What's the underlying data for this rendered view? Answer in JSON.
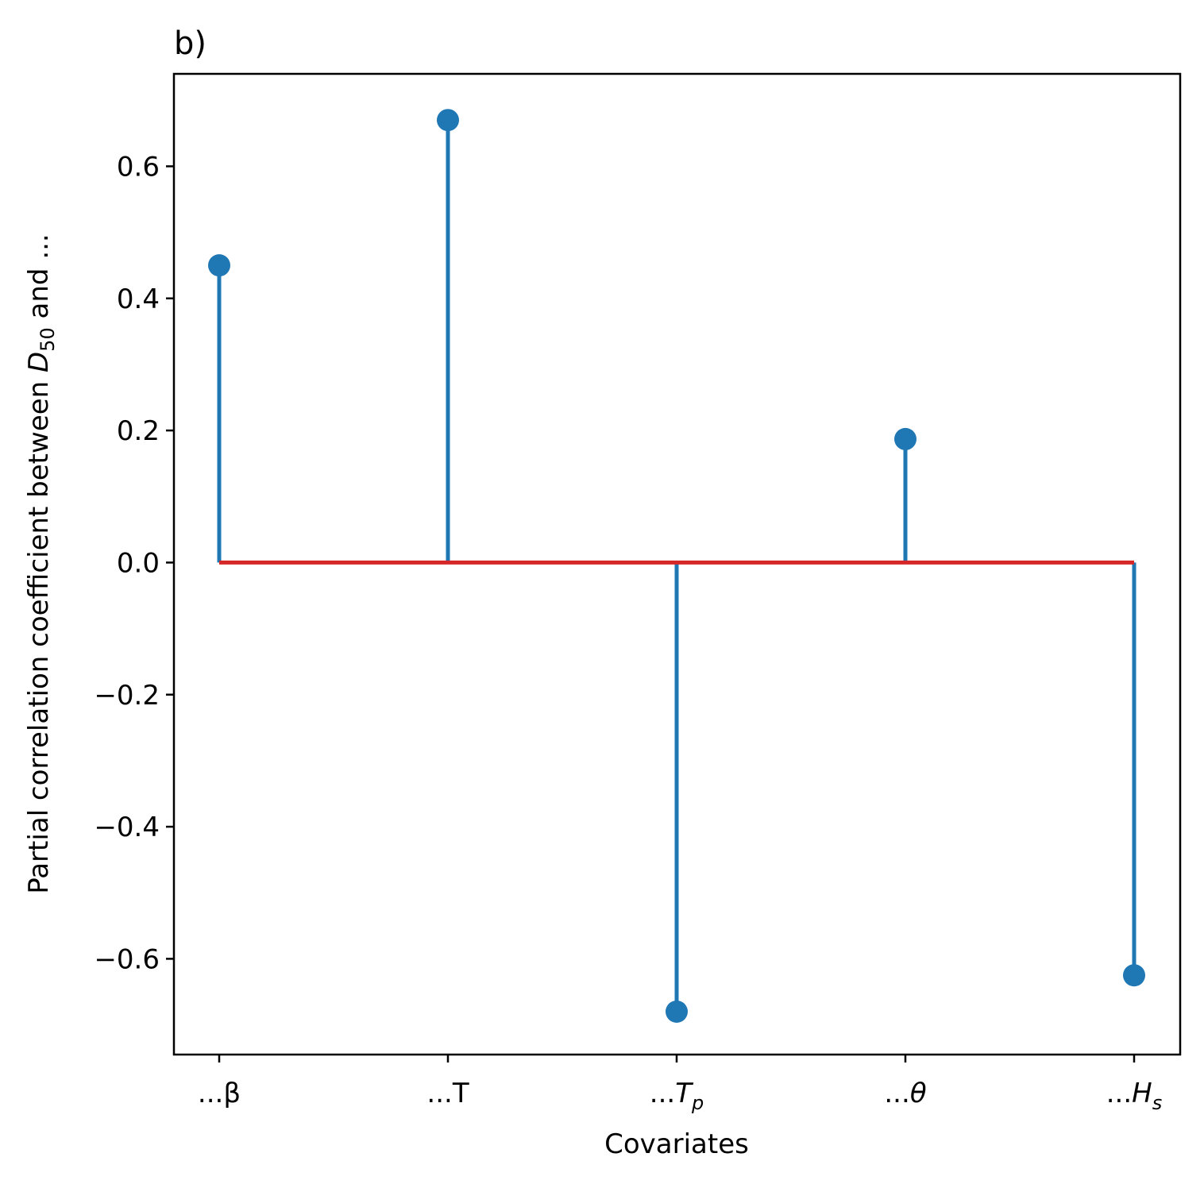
{
  "chart_data": {
    "type": "stem",
    "panel_label": "b)",
    "xlabel": "Covariates",
    "ylabel": {
      "before": "Partial correlation coefficient between ",
      "symbol": "D",
      "subscript": "50",
      "after": " and ..."
    },
    "categories": [
      {
        "prefix": "...",
        "symbol": "β",
        "italic": false,
        "subscript": ""
      },
      {
        "prefix": "...",
        "symbol": "T",
        "italic": false,
        "subscript": ""
      },
      {
        "prefix": "...",
        "symbol": "T",
        "italic": true,
        "subscript": "p"
      },
      {
        "prefix": "...",
        "symbol": "θ",
        "italic": true,
        "subscript": ""
      },
      {
        "prefix": "...",
        "symbol": "H",
        "italic": true,
        "subscript": "s"
      }
    ],
    "values": [
      0.45,
      0.67,
      -0.68,
      0.187,
      -0.625
    ],
    "baseline": 0.0,
    "ylim": [
      -0.745,
      0.74
    ],
    "yticks": [
      -0.6,
      -0.4,
      -0.2,
      0.0,
      0.2,
      0.4,
      0.6
    ],
    "ytick_labels": [
      "−0.6",
      "−0.4",
      "−0.2",
      "0.0",
      "0.2",
      "0.4",
      "0.6"
    ],
    "grid": false,
    "colors": {
      "stem": "#1f77b4",
      "marker": "#1f77b4",
      "baseline": "#d62728"
    }
  }
}
